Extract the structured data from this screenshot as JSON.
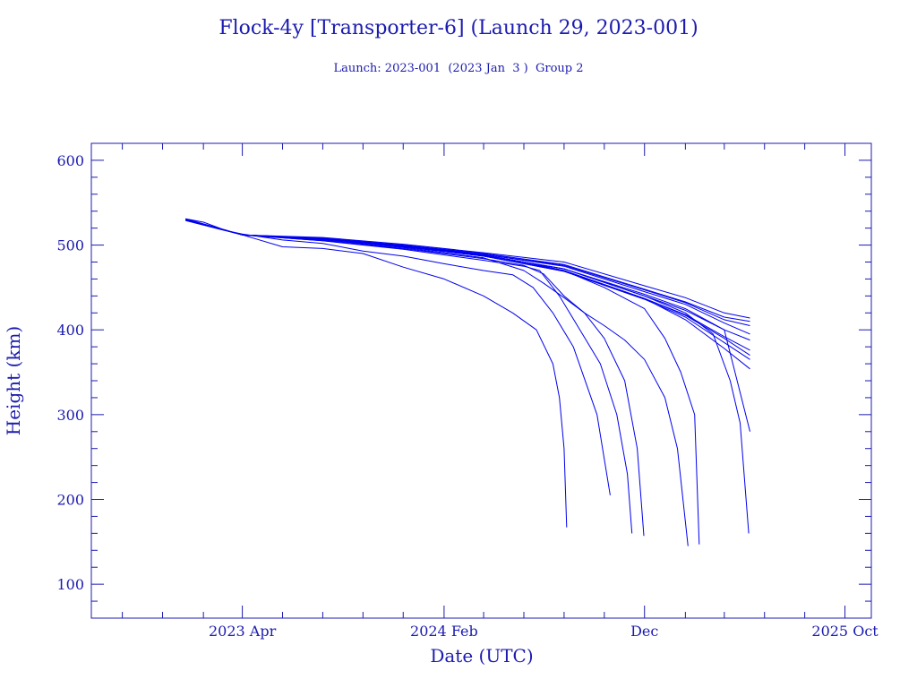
{
  "colors": {
    "ink": "#1b1bb0",
    "series": "#0000ee",
    "background": "#ffffff"
  },
  "chart_data": {
    "type": "line",
    "title": "Flock-4y [Transporter-6] (Launch 29, 2023-001)",
    "subtitle": "Launch: 2023-001  (2023 Jan  3 )  Group 2",
    "xlabel": "Date (UTC)",
    "ylabel": "Height (km)",
    "x_scale": "date",
    "xlim": [
      "2022-08-15",
      "2025-11-10"
    ],
    "ylim": [
      60,
      620
    ],
    "x_tick_labels": [
      {
        "date": "2023-04-01",
        "label": "2023 Apr"
      },
      {
        "date": "2024-02-01",
        "label": "2024 Feb"
      },
      {
        "date": "2024-12-01",
        "label": "Dec"
      },
      {
        "date": "2025-10-01",
        "label": "2025 Oct"
      }
    ],
    "x_minor_tick_dates": [
      "2022-10-01",
      "2022-12-01",
      "2023-02-01",
      "2023-06-01",
      "2023-08-01",
      "2023-10-01",
      "2023-12-01",
      "2024-04-01",
      "2024-06-01",
      "2024-08-01",
      "2024-10-01",
      "2025-02-01",
      "2025-04-01",
      "2025-06-01",
      "2025-08-01"
    ],
    "y_ticks": [
      100,
      200,
      300,
      400,
      500,
      600
    ],
    "y_minor_step": 20,
    "series": [
      {
        "points": [
          [
            "2023-01-05",
            531
          ],
          [
            "2023-02-01",
            527
          ],
          [
            "2023-03-01",
            519
          ],
          [
            "2023-04-01",
            512
          ],
          [
            "2023-06-01",
            498
          ],
          [
            "2023-08-01",
            496
          ],
          [
            "2023-10-01",
            490
          ],
          [
            "2023-12-01",
            474
          ],
          [
            "2024-02-01",
            460
          ],
          [
            "2024-04-01",
            440
          ],
          [
            "2024-05-15",
            420
          ],
          [
            "2024-06-20",
            400
          ],
          [
            "2024-07-15",
            360
          ],
          [
            "2024-07-25",
            320
          ],
          [
            "2024-08-01",
            260
          ],
          [
            "2024-08-05",
            167
          ]
        ]
      },
      {
        "points": [
          [
            "2023-01-05",
            529
          ],
          [
            "2023-03-01",
            518
          ],
          [
            "2023-04-01",
            513
          ],
          [
            "2023-06-01",
            506
          ],
          [
            "2023-08-01",
            502
          ],
          [
            "2023-10-01",
            493
          ],
          [
            "2023-12-01",
            487
          ],
          [
            "2024-02-01",
            478
          ],
          [
            "2024-04-01",
            470
          ],
          [
            "2024-05-15",
            465
          ],
          [
            "2024-06-15",
            450
          ],
          [
            "2024-07-15",
            420
          ],
          [
            "2024-08-15",
            380
          ],
          [
            "2024-09-20",
            300
          ],
          [
            "2024-10-10",
            205
          ]
        ]
      },
      {
        "points": [
          [
            "2023-01-05",
            530
          ],
          [
            "2023-04-01",
            512
          ],
          [
            "2023-08-01",
            505
          ],
          [
            "2023-12-01",
            495
          ],
          [
            "2024-04-01",
            482
          ],
          [
            "2024-06-01",
            475
          ],
          [
            "2024-06-25",
            470
          ],
          [
            "2024-07-25",
            440
          ],
          [
            "2024-08-25",
            400
          ],
          [
            "2024-09-25",
            360
          ],
          [
            "2024-10-20",
            300
          ],
          [
            "2024-11-05",
            230
          ],
          [
            "2024-11-12",
            160
          ]
        ]
      },
      {
        "points": [
          [
            "2023-01-05",
            530
          ],
          [
            "2023-04-01",
            512
          ],
          [
            "2023-08-01",
            505
          ],
          [
            "2023-12-01",
            496
          ],
          [
            "2024-04-01",
            484
          ],
          [
            "2024-06-01",
            476
          ],
          [
            "2024-07-01",
            466
          ],
          [
            "2024-08-01",
            440
          ],
          [
            "2024-09-01",
            420
          ],
          [
            "2024-10-01",
            390
          ],
          [
            "2024-11-01",
            340
          ],
          [
            "2024-11-20",
            260
          ],
          [
            "2024-11-30",
            157
          ]
        ]
      },
      {
        "points": [
          [
            "2023-01-05",
            529
          ],
          [
            "2023-04-01",
            512
          ],
          [
            "2023-08-01",
            506
          ],
          [
            "2023-12-01",
            497
          ],
          [
            "2024-04-01",
            485
          ],
          [
            "2024-06-01",
            470
          ],
          [
            "2024-07-01",
            455
          ],
          [
            "2024-08-01",
            438
          ],
          [
            "2024-09-01",
            420
          ],
          [
            "2024-10-01",
            405
          ],
          [
            "2024-11-01",
            388
          ],
          [
            "2024-12-01",
            365
          ],
          [
            "2025-01-01",
            320
          ],
          [
            "2025-01-20",
            260
          ],
          [
            "2025-02-05",
            145
          ]
        ]
      },
      {
        "points": [
          [
            "2023-01-05",
            531
          ],
          [
            "2023-04-01",
            512
          ],
          [
            "2023-08-01",
            508
          ],
          [
            "2023-12-01",
            499
          ],
          [
            "2024-04-01",
            488
          ],
          [
            "2024-06-01",
            480
          ],
          [
            "2024-08-01",
            470
          ],
          [
            "2024-10-01",
            450
          ],
          [
            "2024-12-01",
            425
          ],
          [
            "2025-01-01",
            390
          ],
          [
            "2025-01-25",
            350
          ],
          [
            "2025-02-15",
            300
          ],
          [
            "2025-02-22",
            147
          ]
        ]
      },
      {
        "points": [
          [
            "2023-01-05",
            530
          ],
          [
            "2023-04-01",
            512
          ],
          [
            "2023-08-01",
            507
          ],
          [
            "2023-12-01",
            499
          ],
          [
            "2024-04-01",
            488
          ],
          [
            "2024-08-01",
            472
          ],
          [
            "2024-12-01",
            440
          ],
          [
            "2025-02-01",
            420
          ],
          [
            "2025-03-15",
            395
          ],
          [
            "2025-04-10",
            340
          ],
          [
            "2025-04-25",
            290
          ],
          [
            "2025-05-08",
            160
          ]
        ]
      },
      {
        "points": [
          [
            "2023-01-05",
            530
          ],
          [
            "2023-04-01",
            512
          ],
          [
            "2023-08-01",
            507
          ],
          [
            "2023-12-01",
            499
          ],
          [
            "2024-04-01",
            488
          ],
          [
            "2024-08-01",
            472
          ],
          [
            "2024-12-01",
            442
          ],
          [
            "2025-02-01",
            425
          ],
          [
            "2025-04-01",
            400
          ],
          [
            "2025-05-10",
            280
          ]
        ]
      },
      {
        "points": [
          [
            "2023-01-05",
            530
          ],
          [
            "2023-04-01",
            512
          ],
          [
            "2023-08-01",
            508
          ],
          [
            "2023-12-01",
            499
          ],
          [
            "2024-04-01",
            489
          ],
          [
            "2024-08-01",
            475
          ],
          [
            "2024-12-01",
            445
          ],
          [
            "2025-02-01",
            430
          ],
          [
            "2025-04-01",
            408
          ],
          [
            "2025-05-10",
            395
          ]
        ]
      },
      {
        "points": [
          [
            "2023-01-05",
            530
          ],
          [
            "2023-04-01",
            512
          ],
          [
            "2023-08-01",
            508
          ],
          [
            "2023-12-01",
            500
          ],
          [
            "2024-04-01",
            489
          ],
          [
            "2024-08-01",
            476
          ],
          [
            "2024-12-01",
            447
          ],
          [
            "2025-02-01",
            432
          ],
          [
            "2025-04-01",
            412
          ],
          [
            "2025-05-10",
            405
          ]
        ]
      },
      {
        "points": [
          [
            "2023-01-05",
            530
          ],
          [
            "2023-04-01",
            512
          ],
          [
            "2023-08-01",
            508
          ],
          [
            "2023-12-01",
            500
          ],
          [
            "2024-04-01",
            490
          ],
          [
            "2024-08-01",
            477
          ],
          [
            "2024-12-01",
            448
          ],
          [
            "2025-02-01",
            433
          ],
          [
            "2025-04-01",
            415
          ],
          [
            "2025-05-10",
            410
          ]
        ]
      },
      {
        "points": [
          [
            "2023-01-05",
            530
          ],
          [
            "2023-04-01",
            512
          ],
          [
            "2023-08-01",
            509
          ],
          [
            "2023-12-01",
            501
          ],
          [
            "2024-04-01",
            491
          ],
          [
            "2024-08-01",
            480
          ],
          [
            "2024-12-01",
            452
          ],
          [
            "2025-02-01",
            438
          ],
          [
            "2025-04-01",
            420
          ],
          [
            "2025-05-10",
            414
          ]
        ]
      },
      {
        "points": [
          [
            "2023-01-05",
            530
          ],
          [
            "2023-04-01",
            512
          ],
          [
            "2023-08-01",
            507
          ],
          [
            "2023-12-01",
            499
          ],
          [
            "2024-04-01",
            488
          ],
          [
            "2024-08-01",
            472
          ],
          [
            "2024-12-01",
            440
          ],
          [
            "2025-02-01",
            423
          ],
          [
            "2025-04-01",
            400
          ],
          [
            "2025-05-10",
            388
          ]
        ]
      },
      {
        "points": [
          [
            "2023-01-05",
            530
          ],
          [
            "2023-04-01",
            512
          ],
          [
            "2023-08-01",
            507
          ],
          [
            "2023-12-01",
            498
          ],
          [
            "2024-04-01",
            487
          ],
          [
            "2024-08-01",
            470
          ],
          [
            "2024-12-01",
            437
          ],
          [
            "2025-02-01",
            418
          ],
          [
            "2025-04-01",
            392
          ],
          [
            "2025-05-10",
            376
          ]
        ]
      },
      {
        "points": [
          [
            "2023-01-05",
            530
          ],
          [
            "2023-04-01",
            512
          ],
          [
            "2023-08-01",
            507
          ],
          [
            "2023-12-01",
            498
          ],
          [
            "2024-04-01",
            487
          ],
          [
            "2024-08-01",
            469
          ],
          [
            "2024-12-01",
            436
          ],
          [
            "2025-02-01",
            415
          ],
          [
            "2025-04-01",
            385
          ],
          [
            "2025-05-10",
            365
          ]
        ]
      },
      {
        "points": [
          [
            "2023-01-05",
            530
          ],
          [
            "2023-04-01",
            512
          ],
          [
            "2023-08-01",
            507
          ],
          [
            "2023-12-01",
            499
          ],
          [
            "2024-04-01",
            487
          ],
          [
            "2024-08-01",
            470
          ],
          [
            "2024-12-01",
            437
          ],
          [
            "2025-02-01",
            412
          ],
          [
            "2025-04-01",
            378
          ],
          [
            "2025-05-10",
            354
          ]
        ]
      },
      {
        "points": [
          [
            "2023-01-05",
            530
          ],
          [
            "2023-04-01",
            512
          ],
          [
            "2023-08-01",
            507
          ],
          [
            "2023-12-01",
            498
          ],
          [
            "2024-04-01",
            487
          ],
          [
            "2024-08-01",
            469
          ],
          [
            "2024-12-01",
            437
          ],
          [
            "2025-02-01",
            417
          ],
          [
            "2025-04-01",
            390
          ],
          [
            "2025-05-10",
            370
          ]
        ]
      }
    ]
  }
}
